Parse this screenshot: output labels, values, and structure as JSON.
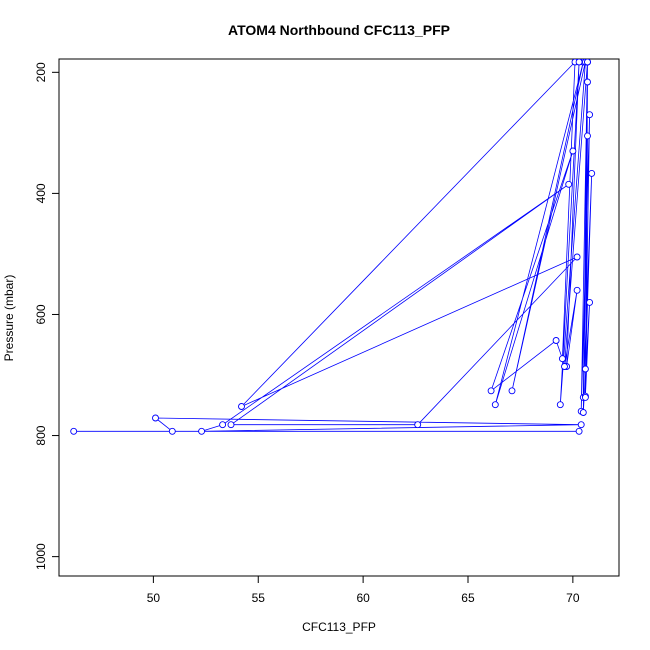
{
  "chart_data": {
    "type": "line",
    "title": "ATOM4 Northbound CFC113_PFP",
    "xlabel": "CFC113_PFP",
    "ylabel": "Pressure (mbar)",
    "xlim": [
      45.5,
      72.2
    ],
    "ylim": [
      1032,
      178
    ],
    "y_reversed": true,
    "grid": false,
    "legend": "none",
    "x_ticks": [
      50,
      55,
      60,
      65,
      70
    ],
    "y_ticks": [
      200,
      400,
      600,
      800,
      1000
    ],
    "line_color": "#0000ff",
    "marker": "open-circle",
    "series": [
      {
        "x": [
          70.3,
          46.2,
          50.9,
          50.1,
          70.4,
          52.3,
          53.3,
          69.8,
          53.7,
          62.6,
          70.2,
          54.2,
          70.1,
          69.5,
          69.2,
          66.1,
          70.0,
          66.3,
          70.5,
          67.1,
          70.6,
          69.4,
          70.3,
          69.7,
          70.2,
          69.6,
          70.7,
          70.4,
          70.8,
          70.6,
          70.9,
          70.5,
          70.7,
          70.6,
          70.8,
          70.5,
          70.7,
          70.6,
          70.7
        ],
        "y": [
          793,
          793,
          793,
          771,
          782,
          793,
          782,
          385,
          782,
          782,
          505,
          752,
          183,
          673,
          643,
          726,
          330,
          749,
          183,
          726,
          183,
          749,
          183,
          686,
          560,
          686,
          183,
          760,
          270,
          690,
          367,
          737,
          183,
          735,
          580,
          762,
          305,
          737,
          216
        ]
      }
    ]
  }
}
